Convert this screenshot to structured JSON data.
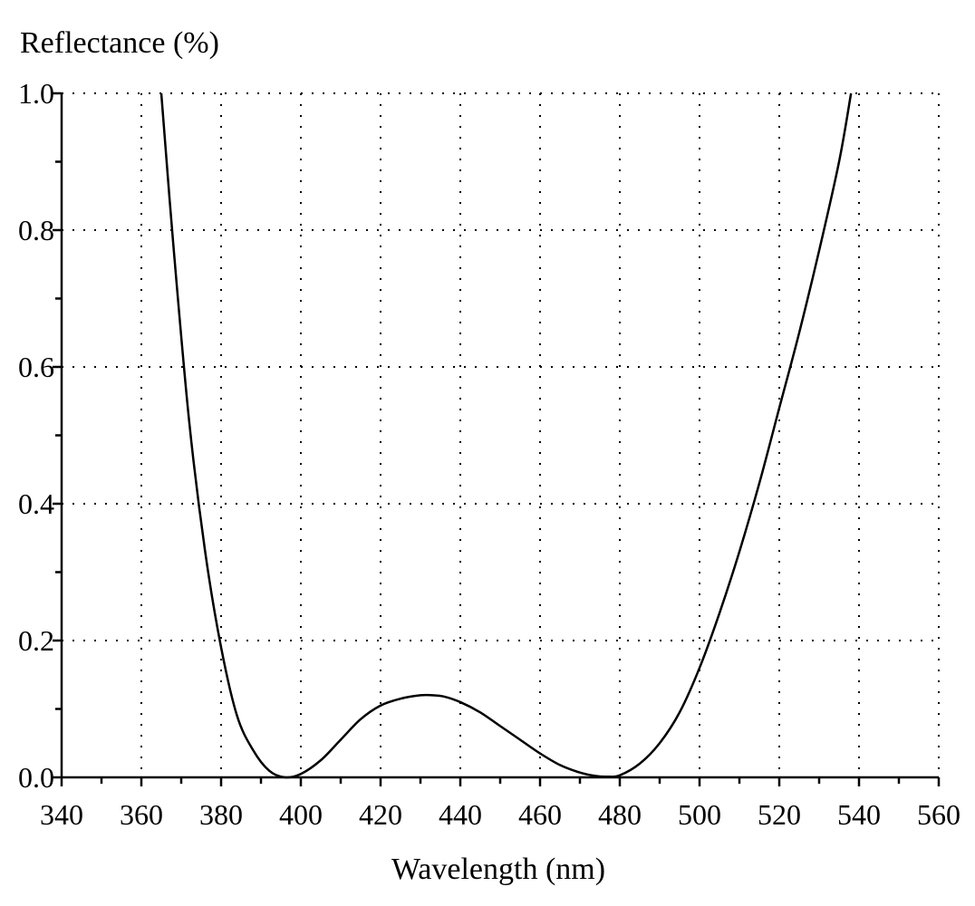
{
  "chart_data": {
    "type": "line",
    "ylabel": "Reflectance (%)",
    "xlabel": "Wavelength (nm)",
    "xlim": [
      340,
      560
    ],
    "ylim": [
      0.0,
      1.0
    ],
    "x_ticks": [
      340,
      360,
      380,
      400,
      420,
      440,
      460,
      480,
      500,
      520,
      540,
      560
    ],
    "x_tick_labels": [
      "340",
      "360",
      "380",
      "400",
      "420",
      "440",
      "460",
      "480",
      "500",
      "520",
      "540",
      "560"
    ],
    "y_ticks": [
      0.0,
      0.2,
      0.4,
      0.6,
      0.8,
      1.0
    ],
    "y_tick_labels": [
      "0.0",
      "0.2",
      "0.4",
      "0.6",
      "0.8",
      "1.0"
    ],
    "grid": true,
    "series": [
      {
        "x": [
          365,
          368,
          372,
          376,
          380,
          384,
          388,
          392,
          396,
          400,
          405,
          410,
          415,
          420,
          425,
          430,
          433,
          436,
          440,
          445,
          450,
          455,
          460,
          465,
          470,
          474,
          477,
          480,
          485,
          490,
          495,
          500,
          505,
          510,
          515,
          520,
          525,
          530,
          535,
          538
        ],
        "y": [
          1.0,
          0.78,
          0.52,
          0.33,
          0.19,
          0.09,
          0.04,
          0.01,
          0.0,
          0.005,
          0.025,
          0.055,
          0.085,
          0.105,
          0.115,
          0.12,
          0.12,
          0.118,
          0.11,
          0.095,
          0.075,
          0.055,
          0.035,
          0.018,
          0.007,
          0.002,
          0.001,
          0.003,
          0.02,
          0.05,
          0.095,
          0.16,
          0.24,
          0.33,
          0.43,
          0.54,
          0.65,
          0.77,
          0.9,
          1.0
        ]
      }
    ]
  }
}
